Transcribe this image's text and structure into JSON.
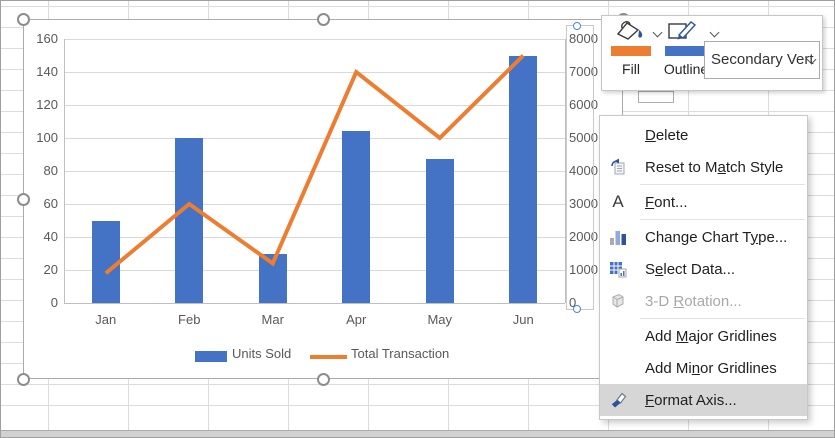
{
  "chart_data": {
    "type": "combo",
    "categories": [
      "Jan",
      "Feb",
      "Mar",
      "Apr",
      "May",
      "Jun"
    ],
    "series": [
      {
        "name": "Units Sold",
        "chart_type": "bar",
        "axis": "primary",
        "color": "#4472C4",
        "values": [
          50,
          100,
          30,
          104,
          87,
          150
        ]
      },
      {
        "name": "Total Transaction",
        "chart_type": "line",
        "axis": "secondary",
        "color": "#ED7D31",
        "values": [
          900,
          3000,
          1200,
          7000,
          5000,
          7500
        ]
      }
    ],
    "primary_axis": {
      "min": 0,
      "max": 160,
      "step": 20
    },
    "secondary_axis": {
      "min": 0,
      "max": 8000,
      "step": 1000
    },
    "legend_position": "bottom",
    "gridlines": true
  },
  "mini_toolbar": {
    "fill_label": "Fill",
    "outline_label": "Outline",
    "fill_swatch_color": "#ED7D31",
    "outline_swatch_color": "#4472C4",
    "selector_value": "Secondary Vert",
    "icons": [
      "fill-bucket-icon",
      "outline-pencil-icon",
      "dropdown-chevron-icon"
    ]
  },
  "context_menu": {
    "items": [
      {
        "pre": "",
        "key": "D",
        "post": "elete",
        "icon": ""
      },
      {
        "pre": "Reset to M",
        "key": "a",
        "post": "tch Style",
        "icon": "reset-to-match-style-icon"
      },
      {
        "separator": true
      },
      {
        "pre": "",
        "key": "F",
        "post": "ont...",
        "icon": "font-icon"
      },
      {
        "separator": true
      },
      {
        "pre": "Change Chart T",
        "key": "y",
        "post": "pe...",
        "icon": "change-chart-type-icon"
      },
      {
        "pre": "S",
        "key": "e",
        "post": "lect Data...",
        "icon": "select-data-icon"
      },
      {
        "pre": "3-D ",
        "key": "R",
        "post": "otation...",
        "icon": "three-d-rotation-icon",
        "disabled": true
      },
      {
        "separator": true
      },
      {
        "pre": "Add ",
        "key": "M",
        "post": "ajor Gridlines",
        "icon": ""
      },
      {
        "pre": "Add Mi",
        "key": "n",
        "post": "or Gridlines",
        "icon": ""
      },
      {
        "pre": "",
        "key": "F",
        "post": "ormat Axis...",
        "icon": "format-axis-icon",
        "highlighted": true
      }
    ]
  }
}
